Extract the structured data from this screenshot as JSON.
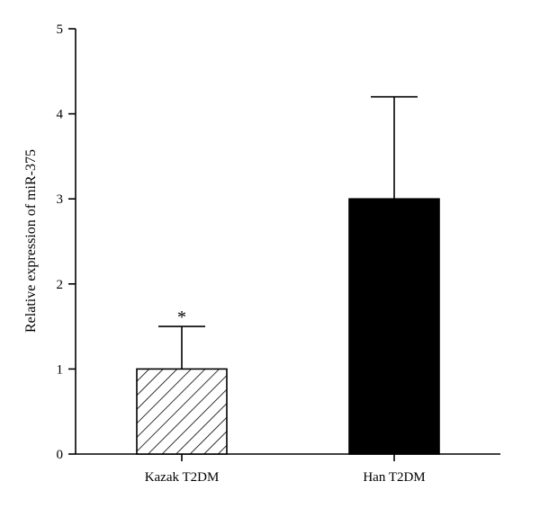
{
  "chart_data": {
    "type": "bar",
    "categories": [
      "Kazak T2DM",
      "Han T2DM"
    ],
    "values": [
      1.0,
      3.0
    ],
    "error_upper": [
      1.5,
      4.2
    ],
    "bar_styles": [
      "hatched",
      "solid"
    ],
    "annotations": [
      "*",
      ""
    ],
    "title": "",
    "xlabel": "",
    "ylabel": "Relative expression of miR-375",
    "ylim": [
      0,
      5
    ],
    "yticks": [
      "0",
      "1",
      "2",
      "3",
      "4",
      "5"
    ],
    "grid": false,
    "legend": "none",
    "colors": {
      "bar_fill_solid": "#000000",
      "bar_stroke": "#000000",
      "hatch": "#000000",
      "background": "#ffffff"
    }
  }
}
